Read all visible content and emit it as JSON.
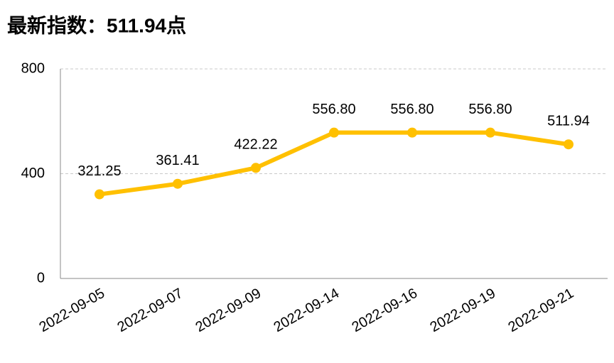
{
  "chart_data": {
    "type": "line",
    "title": "最新指数：511.94点",
    "categories": [
      "2022-09-05",
      "2022-09-07",
      "2022-09-09",
      "2022-09-14",
      "2022-09-16",
      "2022-09-19",
      "2022-09-21"
    ],
    "values": [
      321.25,
      361.41,
      422.22,
      556.8,
      556.8,
      556.8,
      511.94
    ],
    "value_labels": [
      "321.25",
      "361.41",
      "422.22",
      "556.80",
      "556.80",
      "556.80",
      "511.94"
    ],
    "color": "#ffc000",
    "ylim": [
      0,
      800
    ],
    "yticks": [
      0,
      400,
      800
    ],
    "grid": true
  }
}
